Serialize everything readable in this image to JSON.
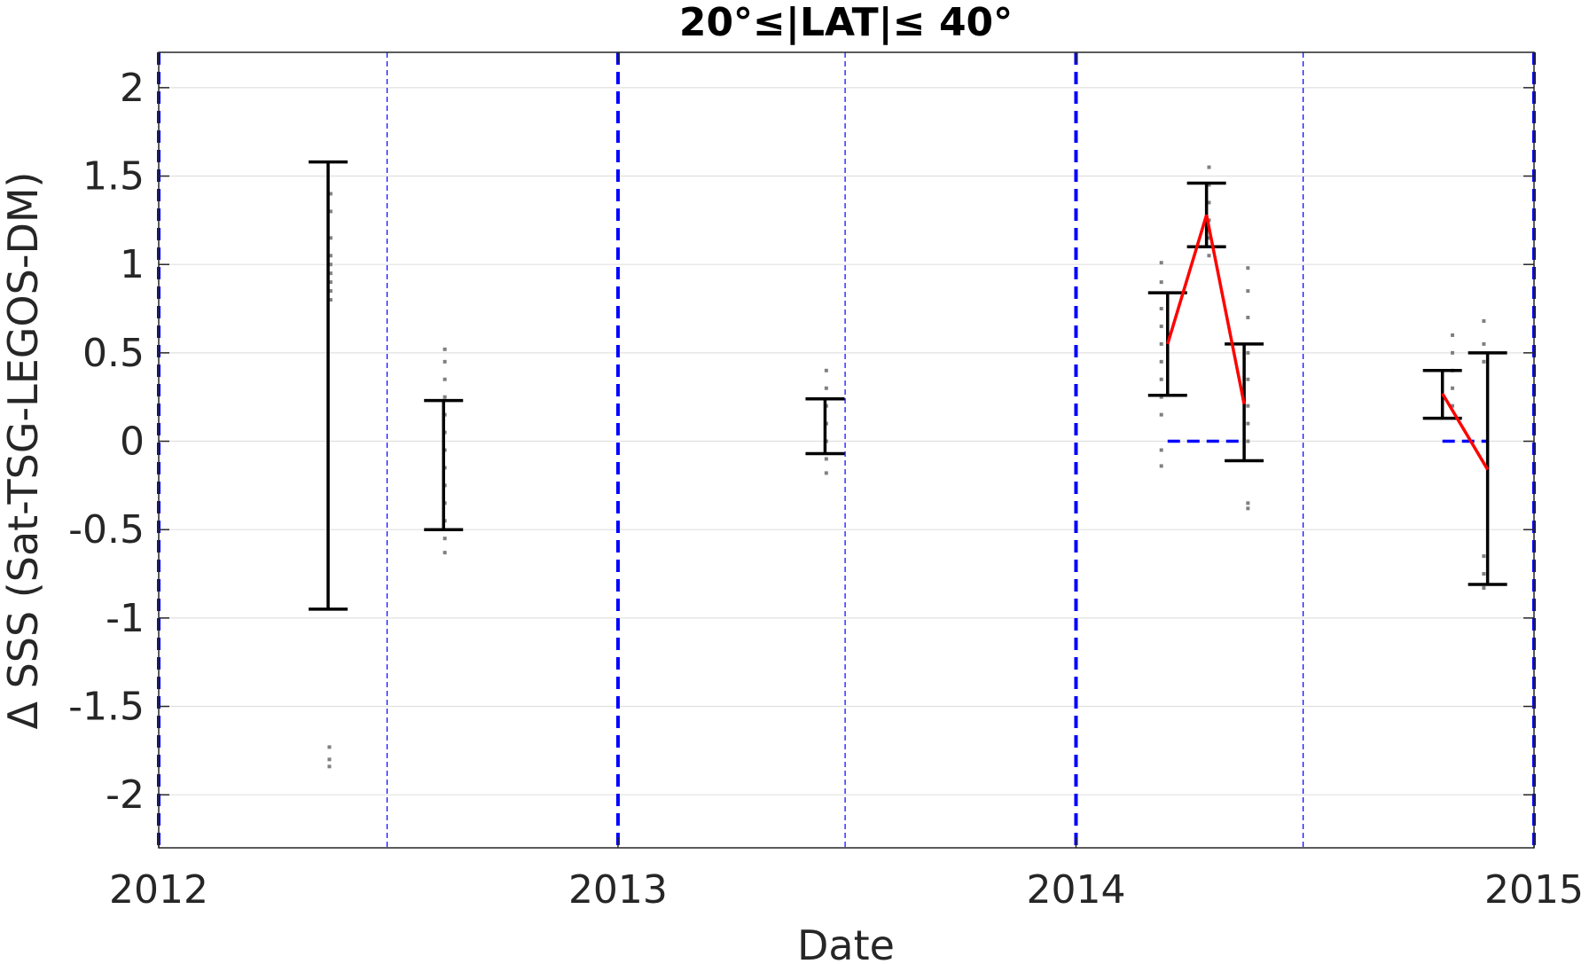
{
  "chart_data": {
    "type": "scatter",
    "title": "20°≤|LAT|≤ 40°",
    "xlabel": "Date",
    "ylabel": "Δ SSS (Sat-TSG-LEGOS-DM)",
    "xlim": [
      "2012-01-01",
      "2015-01-01"
    ],
    "ylim": [
      -2.3,
      2.2
    ],
    "x_ticks": [
      "2012",
      "2013",
      "2014",
      "2015"
    ],
    "y_ticks": [
      -2,
      -1.5,
      -1,
      -0.5,
      0,
      0.5,
      1,
      1.5,
      2
    ],
    "y_tick_labels": [
      "-2",
      "-1.5",
      "-1",
      "-0.5",
      "0",
      "0.5",
      "1",
      "1.5",
      "2"
    ],
    "grid": "horizontal",
    "colors": {
      "errorbar": "#000000",
      "mean_line": "#ff0000",
      "year_lines": "#0000ff",
      "points": "#808080",
      "grid": "#e0e0e0"
    },
    "year_boundaries": [
      "2012-01-01",
      "2013-01-01",
      "2014-01-01",
      "2015-01-01"
    ],
    "half_year_lines": [
      "2012-07-01",
      "2013-07-01",
      "2014-07-01"
    ],
    "zero_reference_segments": [
      {
        "x_start": "2014-03-15",
        "x_end": "2014-05-15",
        "y": 0
      },
      {
        "x_start": "2014-10-20",
        "x_end": "2014-11-25",
        "y": 0
      }
    ],
    "errorbars": [
      {
        "x": "2012-05-15",
        "low": -0.95,
        "high": 1.58
      },
      {
        "x": "2012-08-15",
        "low": -0.5,
        "high": 0.23
      },
      {
        "x": "2013-06-15",
        "low": -0.07,
        "high": 0.24
      },
      {
        "x": "2014-03-15",
        "low": 0.26,
        "high": 0.84
      },
      {
        "x": "2014-04-15",
        "low": 1.1,
        "high": 1.46
      },
      {
        "x": "2014-05-15",
        "low": -0.11,
        "high": 0.55
      },
      {
        "x": "2014-10-20",
        "low": 0.13,
        "high": 0.4
      },
      {
        "x": "2014-11-25",
        "low": -0.81,
        "high": 0.5
      }
    ],
    "series": [
      {
        "type": "line",
        "points": [
          {
            "x": "2014-03-15",
            "y": 0.55
          },
          {
            "x": "2014-04-15",
            "y": 1.28
          },
          {
            "x": "2014-05-15",
            "y": 0.21
          }
        ]
      },
      {
        "type": "line",
        "points": [
          {
            "x": "2014-10-20",
            "y": 0.27
          },
          {
            "x": "2014-11-25",
            "y": -0.16
          }
        ]
      }
    ],
    "scatter_points": [
      {
        "x": "2012-05-17",
        "y": 0.8
      },
      {
        "x": "2012-05-17",
        "y": 0.9
      },
      {
        "x": "2012-05-17",
        "y": 1.0
      },
      {
        "x": "2012-05-17",
        "y": 1.05
      },
      {
        "x": "2012-05-17",
        "y": 1.15
      },
      {
        "x": "2012-05-17",
        "y": 1.3
      },
      {
        "x": "2012-05-17",
        "y": 1.4
      },
      {
        "x": "2012-05-17",
        "y": 0.85
      },
      {
        "x": "2012-05-17",
        "y": 0.95
      },
      {
        "x": "2012-05-16",
        "y": -1.73
      },
      {
        "x": "2012-05-16",
        "y": -1.8
      },
      {
        "x": "2012-05-16",
        "y": -1.84
      },
      {
        "x": "2012-08-16",
        "y": 0.52
      },
      {
        "x": "2012-08-16",
        "y": 0.45
      },
      {
        "x": "2012-08-16",
        "y": 0.35
      },
      {
        "x": "2012-08-16",
        "y": 0.25
      },
      {
        "x": "2012-08-16",
        "y": 0.15
      },
      {
        "x": "2012-08-16",
        "y": 0.05
      },
      {
        "x": "2012-08-16",
        "y": -0.05
      },
      {
        "x": "2012-08-16",
        "y": -0.15
      },
      {
        "x": "2012-08-16",
        "y": -0.25
      },
      {
        "x": "2012-08-16",
        "y": -0.35
      },
      {
        "x": "2012-08-16",
        "y": -0.45
      },
      {
        "x": "2012-08-16",
        "y": -0.55
      },
      {
        "x": "2012-08-16",
        "y": -0.63
      },
      {
        "x": "2013-06-16",
        "y": 0.4
      },
      {
        "x": "2013-06-16",
        "y": 0.3
      },
      {
        "x": "2013-06-16",
        "y": 0.2
      },
      {
        "x": "2013-06-16",
        "y": 0.1
      },
      {
        "x": "2013-06-16",
        "y": 0.0
      },
      {
        "x": "2013-06-16",
        "y": -0.1
      },
      {
        "x": "2013-06-16",
        "y": -0.18
      },
      {
        "x": "2014-03-10",
        "y": 1.01
      },
      {
        "x": "2014-03-10",
        "y": 0.9
      },
      {
        "x": "2014-03-10",
        "y": 0.75
      },
      {
        "x": "2014-03-10",
        "y": 0.65
      },
      {
        "x": "2014-03-10",
        "y": 0.55
      },
      {
        "x": "2014-03-10",
        "y": 0.45
      },
      {
        "x": "2014-03-10",
        "y": 0.35
      },
      {
        "x": "2014-03-10",
        "y": 0.25
      },
      {
        "x": "2014-03-10",
        "y": 0.15
      },
      {
        "x": "2014-03-10",
        "y": -0.05
      },
      {
        "x": "2014-03-10",
        "y": -0.14
      },
      {
        "x": "2014-04-17",
        "y": 1.55
      },
      {
        "x": "2014-04-17",
        "y": 1.45
      },
      {
        "x": "2014-04-17",
        "y": 1.35
      },
      {
        "x": "2014-04-17",
        "y": 1.25
      },
      {
        "x": "2014-04-17",
        "y": 1.15
      },
      {
        "x": "2014-04-17",
        "y": 1.05
      },
      {
        "x": "2014-05-18",
        "y": 0.98
      },
      {
        "x": "2014-05-18",
        "y": 0.85
      },
      {
        "x": "2014-05-18",
        "y": 0.7
      },
      {
        "x": "2014-05-18",
        "y": 0.5
      },
      {
        "x": "2014-05-18",
        "y": 0.35
      },
      {
        "x": "2014-05-18",
        "y": 0.2
      },
      {
        "x": "2014-05-18",
        "y": 0.1
      },
      {
        "x": "2014-05-18",
        "y": 0.0
      },
      {
        "x": "2014-05-18",
        "y": -0.35
      },
      {
        "x": "2014-05-18",
        "y": -0.38
      },
      {
        "x": "2014-10-28",
        "y": 0.6
      },
      {
        "x": "2014-10-28",
        "y": 0.5
      },
      {
        "x": "2014-10-28",
        "y": 0.4
      },
      {
        "x": "2014-10-28",
        "y": 0.3
      },
      {
        "x": "2014-10-28",
        "y": 0.2
      },
      {
        "x": "2014-11-22",
        "y": 0.68
      },
      {
        "x": "2014-11-22",
        "y": 0.55
      },
      {
        "x": "2014-11-22",
        "y": 0.45
      },
      {
        "x": "2014-11-22",
        "y": -0.65
      },
      {
        "x": "2014-11-22",
        "y": -0.75
      },
      {
        "x": "2014-11-22",
        "y": -0.83
      }
    ]
  }
}
